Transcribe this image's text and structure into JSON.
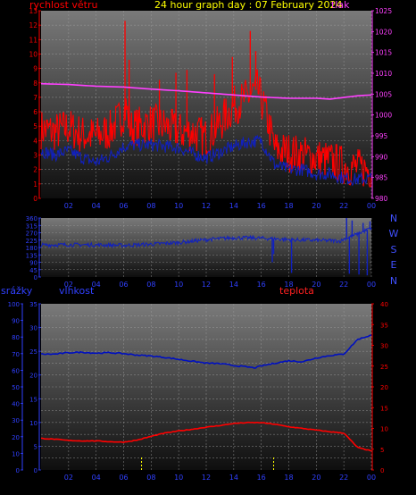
{
  "header": {
    "left_title": "rychlost větru",
    "center_title": "24 hour graph day : 07 February 2024",
    "right_title": "tlak"
  },
  "bottom_header": {
    "rain_label": "srážky",
    "humidity_label": "vlhkost",
    "temperature_label": "teplota"
  },
  "colors": {
    "background": "#000000",
    "panel_top": "#7a7a7a",
    "panel_bottom": "#101010",
    "grid": "#a0a0a0",
    "wind_gust": "#ff0000",
    "wind_avg": "#1020c0",
    "pressure": "#ff40ff",
    "direction": "#1020c0",
    "humidity": "#0010c0",
    "temperature": "#ff0000",
    "rain": "#ffff00",
    "title_left": "#ff0000",
    "title_center": "#ffff00",
    "title_right": "#ff40ff",
    "axis_left": "#ff0000",
    "axis_right": "#ff40ff",
    "axis_blue": "#3040ff"
  },
  "time_ticks": [
    "02",
    "04",
    "06",
    "08",
    "10",
    "12",
    "14",
    "16",
    "18",
    "20",
    "22",
    "00"
  ],
  "chart_data": [
    {
      "type": "line",
      "name": "wind-pressure",
      "ylabel_left": "rychlost větru",
      "ylabel_right": "tlak",
      "y_left_range": [
        0,
        13
      ],
      "y_left_ticks": [
        "0",
        "1",
        "2",
        "3",
        "4",
        "5",
        "6",
        "7",
        "8",
        "9",
        "10",
        "11",
        "12",
        "13"
      ],
      "y_right_range": [
        980,
        1025
      ],
      "y_right_ticks": [
        "980",
        "985",
        "990",
        "995",
        "1000",
        "1005",
        "1010",
        "1015",
        "1020",
        "1025"
      ],
      "x_range": [
        0,
        24
      ],
      "gust_keypoints": [
        [
          0,
          4.8
        ],
        [
          1,
          4.6
        ],
        [
          2,
          4.9
        ],
        [
          3,
          4.4
        ],
        [
          4,
          4.3
        ],
        [
          5,
          4.7
        ],
        [
          5.8,
          5.6
        ],
        [
          6.2,
          6.3
        ],
        [
          6.5,
          4.8
        ],
        [
          7,
          5.0
        ],
        [
          8,
          5.2
        ],
        [
          9,
          5.0
        ],
        [
          10,
          4.6
        ],
        [
          11,
          4.6
        ],
        [
          12,
          4.2
        ],
        [
          13,
          5.2
        ],
        [
          14,
          6.4
        ],
        [
          15,
          7.0
        ],
        [
          15.7,
          7.6
        ],
        [
          16.3,
          6.0
        ],
        [
          17,
          3.4
        ],
        [
          18,
          3.2
        ],
        [
          19,
          3.0
        ],
        [
          20,
          2.8
        ],
        [
          21,
          2.6
        ],
        [
          22,
          2.3
        ],
        [
          23,
          2.1
        ],
        [
          24,
          2.0
        ]
      ],
      "gust_spikes": [
        [
          6.1,
          12.3
        ],
        [
          6.4,
          9.6
        ],
        [
          13.9,
          9.8
        ],
        [
          15.2,
          11.6
        ],
        [
          15.6,
          10.2
        ],
        [
          10.6,
          8.9
        ],
        [
          9.8,
          8.7
        ],
        [
          8.6,
          8.2
        ],
        [
          12.6,
          8.6
        ]
      ],
      "average_keypoints": [
        [
          0,
          3.3
        ],
        [
          1,
          3.0
        ],
        [
          2,
          3.3
        ],
        [
          3,
          2.8
        ],
        [
          4,
          2.5
        ],
        [
          5,
          2.9
        ],
        [
          6,
          3.6
        ],
        [
          7,
          3.7
        ],
        [
          8,
          3.7
        ],
        [
          9,
          3.6
        ],
        [
          10,
          3.5
        ],
        [
          11,
          3.1
        ],
        [
          12,
          2.8
        ],
        [
          13,
          3.2
        ],
        [
          14,
          3.6
        ],
        [
          15,
          3.9
        ],
        [
          16,
          4.0
        ],
        [
          17,
          2.3
        ],
        [
          18,
          2.0
        ],
        [
          19,
          2.0
        ],
        [
          20,
          1.7
        ],
        [
          21,
          1.7
        ],
        [
          22,
          1.4
        ],
        [
          23,
          1.3
        ],
        [
          24,
          1.4
        ]
      ],
      "pressure_keypoints": [
        [
          0,
          1007.5
        ],
        [
          2,
          1007.3
        ],
        [
          4,
          1006.9
        ],
        [
          6,
          1006.7
        ],
        [
          8,
          1006.2
        ],
        [
          10,
          1005.8
        ],
        [
          12,
          1005.3
        ],
        [
          14,
          1004.8
        ],
        [
          16,
          1004.3
        ],
        [
          18,
          1004.0
        ],
        [
          20,
          1004.0
        ],
        [
          21,
          1003.8
        ],
        [
          22,
          1004.2
        ],
        [
          23,
          1004.6
        ],
        [
          24,
          1004.8
        ]
      ]
    },
    {
      "type": "scatter",
      "name": "wind-direction",
      "y_range": [
        0,
        360
      ],
      "y_ticks": [
        "0",
        "45",
        "90",
        "135",
        "180",
        "225",
        "270",
        "315",
        "360"
      ],
      "compass_labels": [
        "N",
        "W",
        "S",
        "E",
        "N"
      ],
      "x_range": [
        0,
        24
      ],
      "direction_keypoints": [
        [
          0,
          195
        ],
        [
          2,
          197
        ],
        [
          4,
          196
        ],
        [
          6,
          193
        ],
        [
          8,
          200
        ],
        [
          10,
          210
        ],
        [
          12,
          228
        ],
        [
          14,
          240
        ],
        [
          16,
          237
        ],
        [
          18,
          228
        ],
        [
          20,
          224
        ],
        [
          21.8,
          220
        ],
        [
          22,
          232
        ],
        [
          23,
          262
        ],
        [
          24,
          300
        ]
      ],
      "direction_spikes": [
        [
          16.8,
          90
        ],
        [
          16.9,
          140
        ],
        [
          18.2,
          25
        ],
        [
          22.2,
          360
        ],
        [
          22.4,
          20
        ],
        [
          22.6,
          345
        ],
        [
          23.1,
          15
        ],
        [
          23.4,
          330
        ],
        [
          23.7,
          10
        ],
        [
          23.9,
          340
        ]
      ]
    },
    {
      "type": "line",
      "name": "humidity-temperature-rain",
      "ylabel_left": "srážky",
      "ylabel_mid": "vlhkost",
      "ylabel_right": "teplota",
      "rain_range": [
        0,
        100
      ],
      "rain_ticks": [
        "0",
        "10",
        "20",
        "30",
        "40",
        "50",
        "60",
        "70",
        "80",
        "90",
        "100"
      ],
      "humidity_range": [
        0,
        35
      ],
      "humidity_ticks": [
        "0",
        "5",
        "10",
        "15",
        "20",
        "25",
        "30",
        "35"
      ],
      "temperature_range": [
        0,
        40
      ],
      "temperature_ticks": [
        "0",
        "5",
        "10",
        "15",
        "20",
        "25",
        "30",
        "35",
        "40"
      ],
      "x_range": [
        0,
        24
      ],
      "humidity_keypoints": [
        [
          0,
          24.4
        ],
        [
          1,
          24.4
        ],
        [
          2,
          24.7
        ],
        [
          3,
          24.8
        ],
        [
          4,
          24.6
        ],
        [
          5,
          24.7
        ],
        [
          6,
          24.5
        ],
        [
          7,
          24.2
        ],
        [
          8,
          24.0
        ],
        [
          9,
          23.7
        ],
        [
          10,
          23.3
        ],
        [
          11,
          22.9
        ],
        [
          12,
          22.5
        ],
        [
          13,
          22.4
        ],
        [
          14,
          22.0
        ],
        [
          15,
          21.7
        ],
        [
          15.5,
          21.5
        ],
        [
          16,
          21.9
        ],
        [
          17,
          22.5
        ],
        [
          18,
          23.0
        ],
        [
          19,
          22.8
        ],
        [
          20,
          23.6
        ],
        [
          21,
          24.1
        ],
        [
          22,
          24.4
        ],
        [
          23,
          27.5
        ],
        [
          24,
          28.4
        ]
      ],
      "temperature_keypoints": [
        [
          0,
          7.6
        ],
        [
          1,
          7.4
        ],
        [
          2,
          7.1
        ],
        [
          3,
          7.0
        ],
        [
          4,
          7.0
        ],
        [
          5,
          6.8
        ],
        [
          6,
          6.7
        ],
        [
          7,
          7.2
        ],
        [
          8,
          8.1
        ],
        [
          9,
          8.9
        ],
        [
          10,
          9.4
        ],
        [
          11,
          9.8
        ],
        [
          12,
          10.3
        ],
        [
          13,
          10.7
        ],
        [
          14,
          11.2
        ],
        [
          15,
          11.4
        ],
        [
          16,
          11.4
        ],
        [
          17,
          11.0
        ],
        [
          18,
          10.4
        ],
        [
          19,
          10.0
        ],
        [
          20,
          9.6
        ],
        [
          21,
          9.2
        ],
        [
          22,
          8.9
        ],
        [
          23,
          5.4
        ],
        [
          24,
          4.6
        ]
      ],
      "rain_events": [
        [
          7.3,
          8
        ],
        [
          16.9,
          8
        ]
      ]
    }
  ]
}
